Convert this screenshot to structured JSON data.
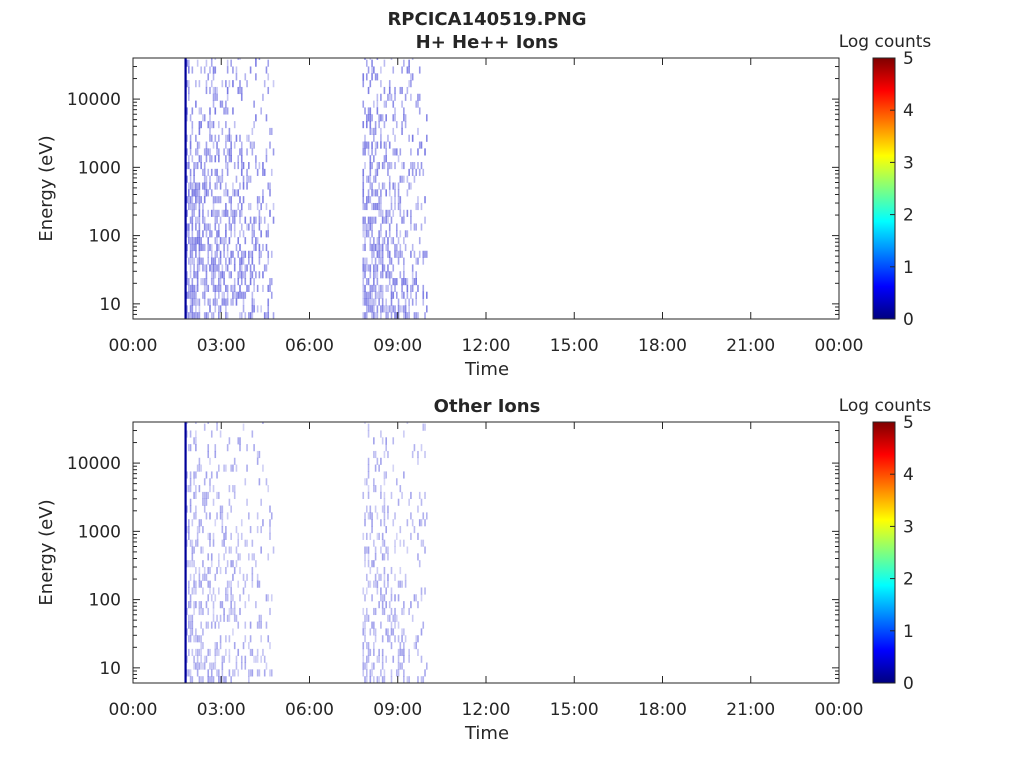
{
  "figure": {
    "title_line1": "RPCICA140519.PNG"
  },
  "colormap_stops": [
    "#00007f",
    "#0000ff",
    "#007fff",
    "#00ffff",
    "#7fff7f",
    "#ffff00",
    "#ff7f00",
    "#ff0000",
    "#7f0000"
  ],
  "chart_data": [
    {
      "type": "heatmap",
      "title": "H+ He++ Ions",
      "xlabel": "Time",
      "ylabel": "Energy (eV)",
      "x_ticks": [
        "00:00",
        "03:00",
        "06:00",
        "09:00",
        "12:00",
        "15:00",
        "18:00",
        "21:00",
        "00:00"
      ],
      "xlim_hours": [
        0,
        24
      ],
      "y_scale": "log",
      "y_ticks": [
        "10",
        "100",
        "1000",
        "10000"
      ],
      "ylim": [
        6,
        40000
      ],
      "colorbar": {
        "label": "Log counts",
        "ticks": [
          "0",
          "1",
          "2",
          "3",
          "4",
          "5"
        ],
        "range": [
          0,
          5
        ]
      },
      "data_intervals_hours": [
        [
          1.75,
          4.75
        ],
        [
          7.8,
          10.0
        ]
      ],
      "dense_edge_hour": 1.75,
      "max_log_counts_approx": 1.5
    },
    {
      "type": "heatmap",
      "title": "Other Ions",
      "xlabel": "Time",
      "ylabel": "Energy (eV)",
      "x_ticks": [
        "00:00",
        "03:00",
        "06:00",
        "09:00",
        "12:00",
        "15:00",
        "18:00",
        "21:00",
        "00:00"
      ],
      "xlim_hours": [
        0,
        24
      ],
      "y_scale": "log",
      "y_ticks": [
        "10",
        "100",
        "1000",
        "10000"
      ],
      "ylim": [
        6,
        40000
      ],
      "colorbar": {
        "label": "Log counts",
        "ticks": [
          "0",
          "1",
          "2",
          "3",
          "4",
          "5"
        ],
        "range": [
          0,
          5
        ]
      },
      "data_intervals_hours": [
        [
          1.75,
          4.75
        ],
        [
          7.8,
          10.0
        ]
      ],
      "dense_edge_hour": 1.75,
      "max_log_counts_approx": 1.0
    }
  ]
}
